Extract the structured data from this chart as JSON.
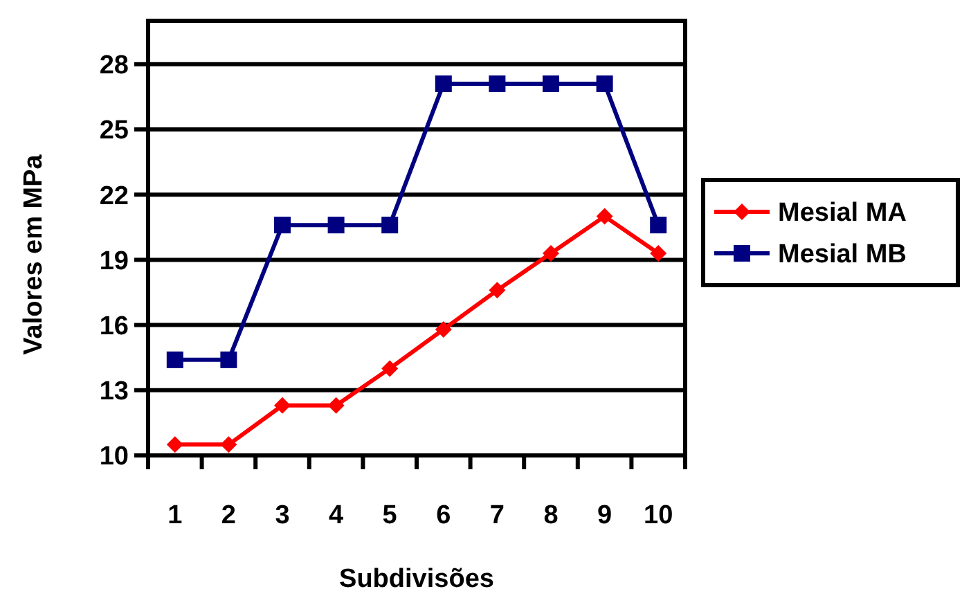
{
  "chart_data": {
    "type": "line",
    "xlabel": "Subdivisões",
    "ylabel": "Valores em MPa",
    "categories": [
      "1",
      "2",
      "3",
      "4",
      "5",
      "6",
      "7",
      "8",
      "9",
      "10"
    ],
    "series": [
      {
        "name": "Mesial MA",
        "color": "#ff0000",
        "marker": "diamond",
        "values": [
          10.5,
          10.5,
          12.3,
          12.3,
          14.0,
          15.8,
          17.6,
          19.3,
          21.0,
          19.3
        ]
      },
      {
        "name": "Mesial MB",
        "color": "#000080",
        "marker": "square",
        "values": [
          14.4,
          14.4,
          20.6,
          20.6,
          20.6,
          27.1,
          27.1,
          27.1,
          27.1,
          20.6
        ]
      }
    ],
    "ylim": [
      10,
      30
    ],
    "yticks": [
      10,
      13,
      16,
      19,
      22,
      25,
      28
    ],
    "grid": "y",
    "legend": "right"
  }
}
